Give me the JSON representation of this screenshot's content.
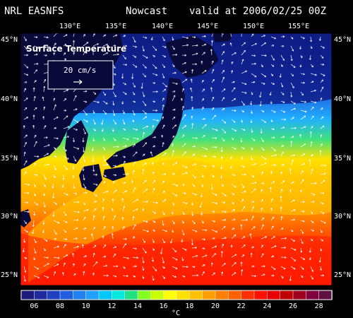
{
  "header": {
    "source": "NRL EASNFS",
    "product": "Nowcast",
    "valid_label": "valid at",
    "valid_time": "2006/02/25 00Z"
  },
  "map": {
    "field_title": "Surface Temperature",
    "vector_scale_label": "20 cm/s",
    "lon_labels": [
      "130°E",
      "135°E",
      "140°E",
      "145°E",
      "150°E",
      "155°E"
    ],
    "lat_labels": [
      "45°N",
      "40°N",
      "35°N",
      "30°N",
      "25°N"
    ],
    "land_color": "#0a0a3a",
    "arrow_color": "#ffffff"
  },
  "colorbar": {
    "tick_labels": [
      "06",
      "08",
      "10",
      "12",
      "14",
      "16",
      "18",
      "20",
      "22",
      "24",
      "26",
      "28"
    ],
    "unit": "°C",
    "colors": [
      "#1a1a7a",
      "#1e2a9e",
      "#2040c0",
      "#2060e0",
      "#2080f0",
      "#20a0ff",
      "#00c8ff",
      "#00e8e0",
      "#20e080",
      "#80ff20",
      "#c8ff00",
      "#ffff00",
      "#ffe000",
      "#ffc000",
      "#ffa000",
      "#ff8000",
      "#ff6000",
      "#ff3000",
      "#ff1000",
      "#e80000",
      "#c00000",
      "#a00020",
      "#800040",
      "#601040"
    ]
  }
}
